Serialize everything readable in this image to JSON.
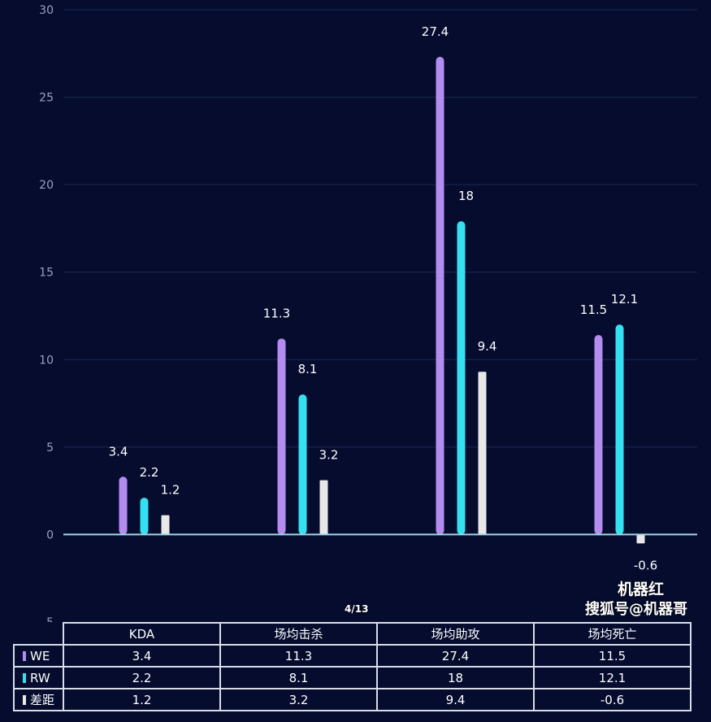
{
  "chart_data": {
    "type": "bar",
    "categories": [
      "KDA",
      "场均击杀",
      "场均助攻",
      "场均死亡"
    ],
    "series": [
      {
        "name": "WE",
        "values": [
          3.4,
          11.3,
          27.4,
          11.5
        ],
        "color": "#b48cf0"
      },
      {
        "name": "RW",
        "values": [
          2.2,
          8.1,
          18,
          12.1
        ],
        "color": "#35e0f0"
      },
      {
        "name": "差距",
        "values": [
          1.2,
          3.2,
          9.4,
          -0.6
        ],
        "color": "#e8e8e8"
      }
    ],
    "ylim": [
      -5,
      30
    ],
    "yticks": [
      -5,
      0,
      5,
      10,
      15,
      20,
      25,
      30
    ],
    "grid": true,
    "legend": "data table below chart",
    "data_table": true
  },
  "watermark": {
    "line1": "机器红",
    "line2": "搜狐号@机器哥"
  },
  "page_indicator": "4/13",
  "colors": {
    "background": "#050c2e",
    "grid": "#1c2a52",
    "zero_line": "#9fd8e8"
  }
}
